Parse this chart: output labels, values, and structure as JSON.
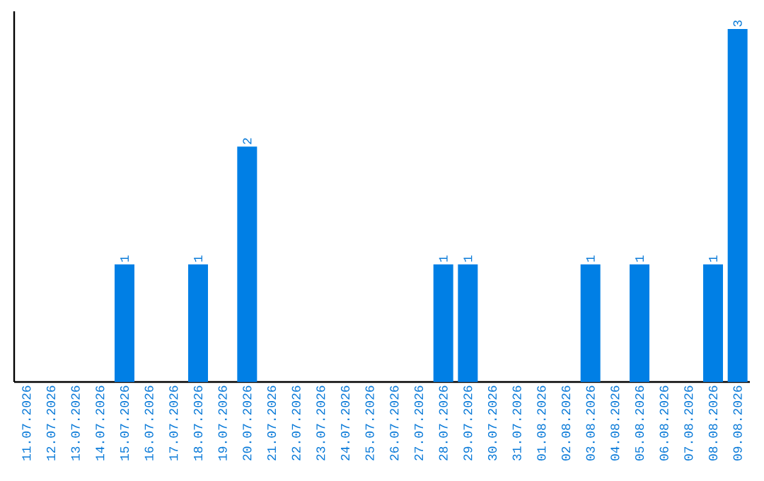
{
  "chart_data": {
    "type": "bar",
    "categories": [
      "11.07.2026",
      "12.07.2026",
      "13.07.2026",
      "14.07.2026",
      "15.07.2026",
      "16.07.2026",
      "17.07.2026",
      "18.07.2026",
      "19.07.2026",
      "20.07.2026",
      "21.07.2026",
      "22.07.2026",
      "23.07.2026",
      "24.07.2026",
      "25.07.2026",
      "26.07.2026",
      "27.07.2026",
      "28.07.2026",
      "29.07.2026",
      "30.07.2026",
      "31.07.2026",
      "01.08.2026",
      "02.08.2026",
      "03.08.2026",
      "04.08.2026",
      "05.08.2026",
      "06.08.2026",
      "07.08.2026",
      "08.08.2026",
      "09.08.2026"
    ],
    "values": [
      0,
      0,
      0,
      0,
      1,
      0,
      0,
      1,
      0,
      2,
      0,
      0,
      0,
      0,
      0,
      0,
      0,
      1,
      1,
      0,
      0,
      0,
      0,
      1,
      0,
      1,
      0,
      0,
      1,
      3
    ],
    "value_labels": [
      null,
      null,
      null,
      null,
      "1",
      null,
      null,
      "1",
      null,
      "2",
      null,
      null,
      null,
      null,
      null,
      null,
      null,
      "1",
      "1",
      null,
      null,
      null,
      null,
      "1",
      null,
      "1",
      null,
      null,
      "1",
      "3"
    ],
    "color": "#007fe5"
  }
}
